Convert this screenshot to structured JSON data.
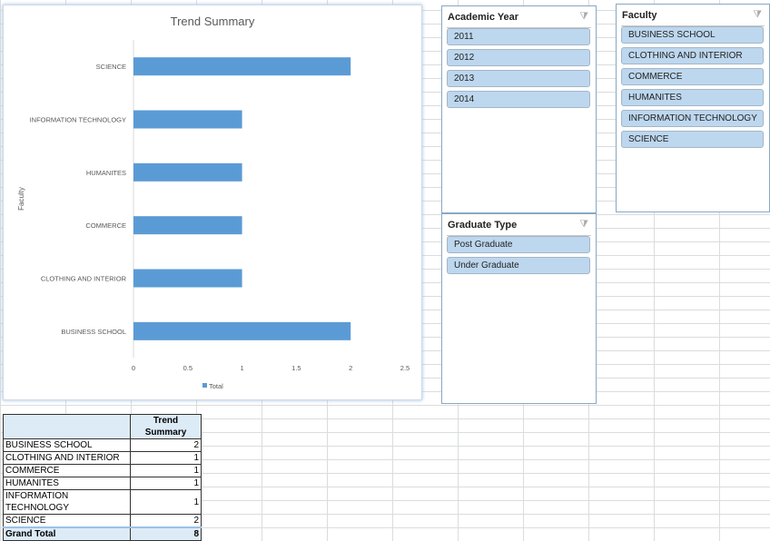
{
  "chart_data": {
    "type": "bar",
    "title": "Trend Summary",
    "ylabel": "Faculty",
    "xlabel": "",
    "categories": [
      "BUSINESS SCHOOL",
      "CLOTHING AND INTERIOR",
      "COMMERCE",
      "HUMANITES",
      "INFORMATION TECHNOLOGY",
      "SCIENCE"
    ],
    "series": [
      {
        "name": "Total",
        "values": [
          2,
          1,
          1,
          1,
          1,
          2
        ],
        "color": "#5b9bd5"
      }
    ],
    "xlim": [
      0,
      2.5
    ],
    "xticks": [
      "0",
      "0.5",
      "1",
      "1.5",
      "2",
      "2.5"
    ],
    "grid": false,
    "legend": "bottom",
    "orientation": "horizontal"
  },
  "slicers": {
    "academic_year": {
      "title": "Academic Year",
      "items": [
        "2011",
        "2012",
        "2013",
        "2014"
      ]
    },
    "faculty": {
      "title": "Faculty",
      "items": [
        "BUSINESS SCHOOL",
        "CLOTHING AND INTERIOR",
        "COMMERCE",
        "HUMANITES",
        "INFORMATION TECHNOLOGY",
        "SCIENCE"
      ]
    },
    "graduate_type": {
      "title": "Graduate Type",
      "items": [
        "Post Graduate",
        "Under Graduate"
      ]
    },
    "clear_filter_icon": "filter-clear-icon"
  },
  "pivot": {
    "header": "Trend Summary",
    "rows": [
      {
        "label": "BUSINESS SCHOOL",
        "value": "2"
      },
      {
        "label": "CLOTHING AND INTERIOR",
        "value": "1"
      },
      {
        "label": "COMMERCE",
        "value": "1"
      },
      {
        "label": "HUMANITES",
        "value": "1"
      },
      {
        "label": "INFORMATION TECHNOLOGY",
        "value": "1"
      },
      {
        "label": "SCIENCE",
        "value": "2"
      }
    ],
    "total_label": "Grand Total",
    "total_value": "8"
  }
}
